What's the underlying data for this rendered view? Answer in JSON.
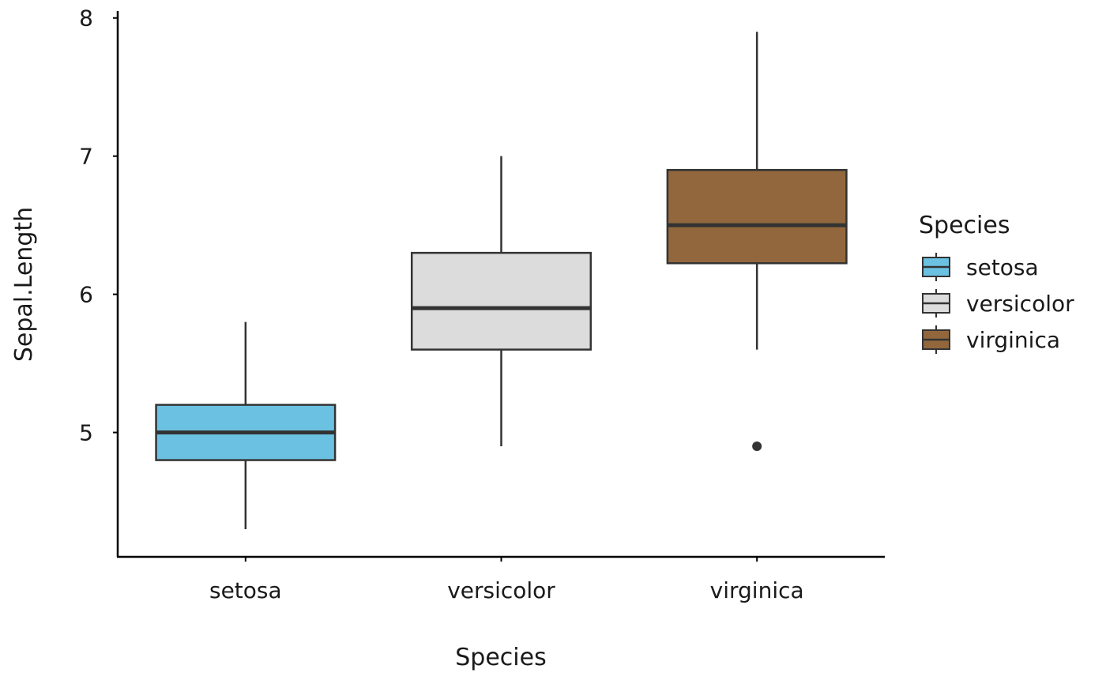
{
  "chart_data": {
    "type": "boxplot",
    "title": "",
    "xlabel": "Species",
    "ylabel": "Sepal.Length",
    "ylim": [
      4.1,
      8.05
    ],
    "y_ticks": [
      5,
      6,
      7,
      8
    ],
    "grid": false,
    "legend": {
      "title": "Species",
      "placement": "right"
    },
    "categories": [
      "setosa",
      "versicolor",
      "virginica"
    ],
    "boxes": [
      {
        "name": "setosa",
        "color": "#6bc1e1",
        "whisker_low": 4.3,
        "q1": 4.8,
        "median": 5.0,
        "q3": 5.2,
        "whisker_high": 5.8,
        "outliers": []
      },
      {
        "name": "versicolor",
        "color": "#dcdcdc",
        "whisker_low": 4.9,
        "q1": 5.6,
        "median": 5.9,
        "q3": 6.3,
        "whisker_high": 7.0,
        "outliers": []
      },
      {
        "name": "virginica",
        "color": "#92673d",
        "whisker_low": 5.6,
        "q1": 6.225,
        "median": 6.5,
        "q3": 6.9,
        "whisker_high": 7.9,
        "outliers": [
          4.9
        ]
      }
    ]
  }
}
